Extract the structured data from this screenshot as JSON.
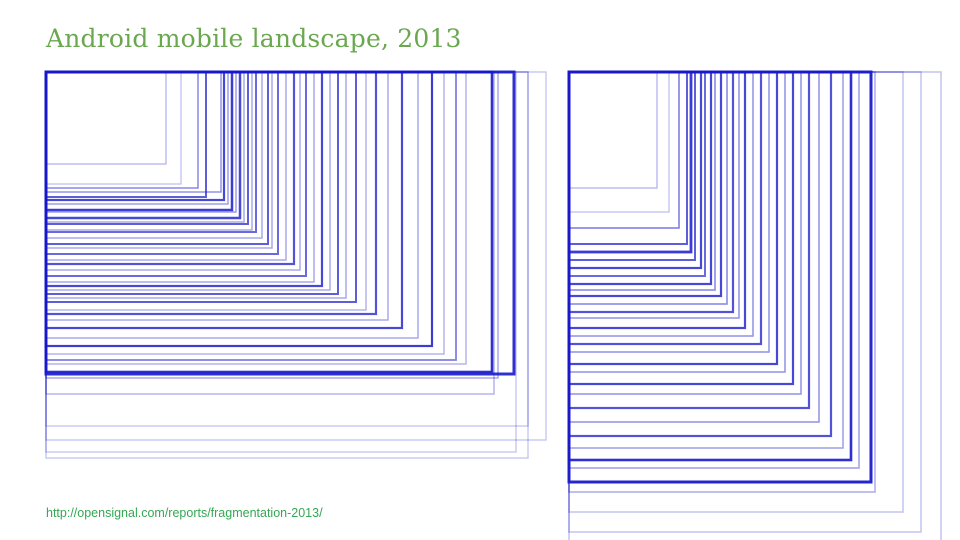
{
  "slide": {
    "title": "Android mobile landscape, 2013",
    "source_url": "http://opensignal.com/reports/fragmentation-2013/"
  },
  "colors": {
    "title": "#6aa84f",
    "link": "#34a853",
    "rect_stroke": "#1a1acc"
  }
}
